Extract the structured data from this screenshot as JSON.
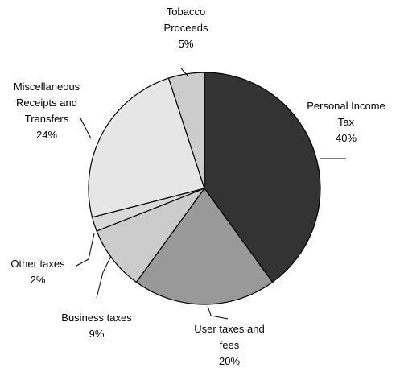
{
  "chart_data": {
    "type": "pie",
    "title": "",
    "start_angle_deg": 0,
    "direction": "clockwise",
    "border_color": "#000000",
    "slices": [
      {
        "id": "personal-income-tax",
        "label_lines": [
          "Personal Income",
          "Tax"
        ],
        "pct_label": "40%",
        "value": 40,
        "color": "#333333"
      },
      {
        "id": "user-taxes-and-fees",
        "label_lines": [
          "User taxes and",
          "fees"
        ],
        "pct_label": "20%",
        "value": 20,
        "color": "#999999"
      },
      {
        "id": "business-taxes",
        "label_lines": [
          "Business taxes"
        ],
        "pct_label": "9%",
        "value": 9,
        "color": "#cccccc"
      },
      {
        "id": "other-taxes",
        "label_lines": [
          "Other taxes"
        ],
        "pct_label": "2%",
        "value": 2,
        "color": "#d9d9d9"
      },
      {
        "id": "miscellaneous-receipts-and-transfers",
        "label_lines": [
          "Miscellaneous",
          "Receipts and",
          "Transfers"
        ],
        "pct_label": "24%",
        "value": 24,
        "color": "#e6e6e6"
      },
      {
        "id": "tobacco-proceeds",
        "label_lines": [
          "Tobacco",
          "Proceeds"
        ],
        "pct_label": "5%",
        "value": 5,
        "color": "#cccccc"
      }
    ]
  }
}
